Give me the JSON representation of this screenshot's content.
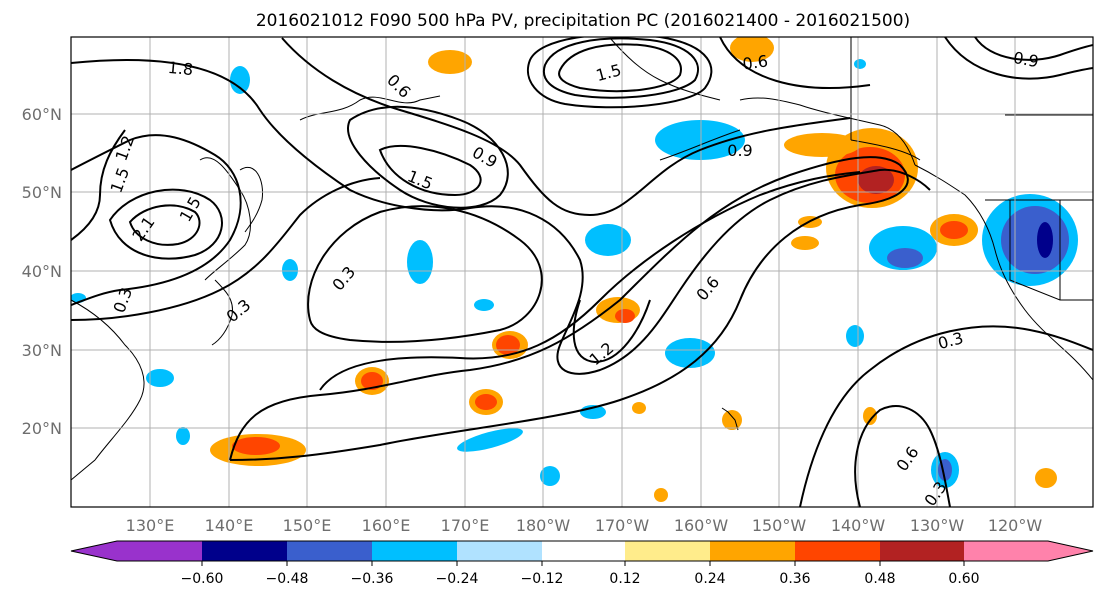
{
  "title": "2016021012 F090 500 hPa PV, precipitation PC (2016021400 - 2016021500)",
  "lon_labels": [
    "130°E",
    "140°E",
    "150°E",
    "160°E",
    "170°E",
    "180°W",
    "170°W",
    "160°W",
    "150°W",
    "140°W",
    "130°W",
    "120°W"
  ],
  "lat_labels": [
    "60°N",
    "50°N",
    "40°N",
    "30°N",
    "20°N"
  ],
  "colorbar": {
    "tick_labels": [
      "−0.60",
      "−0.48",
      "−0.36",
      "−0.24",
      "−0.12",
      "0.12",
      "0.24",
      "0.36",
      "0.48",
      "0.60"
    ],
    "colors": [
      "#9932cc",
      "#00008b",
      "#3a5fcd",
      "#00bfff",
      "#b0e2ff",
      "#ffffff",
      "#ffec8b",
      "#ffa500",
      "#ff4500",
      "#b22222",
      "#ff82ab"
    ]
  },
  "contour_labels": [
    "1.8",
    "1.2",
    "1.5",
    "2.1",
    "1.5",
    "0.6",
    "0.9",
    "1.5",
    "0.3",
    "0.3",
    "0.6",
    "0.9",
    "1.5",
    "0.9",
    "1.2",
    "0.6",
    "0.3",
    "0.6",
    "0.3",
    "0.3"
  ]
}
